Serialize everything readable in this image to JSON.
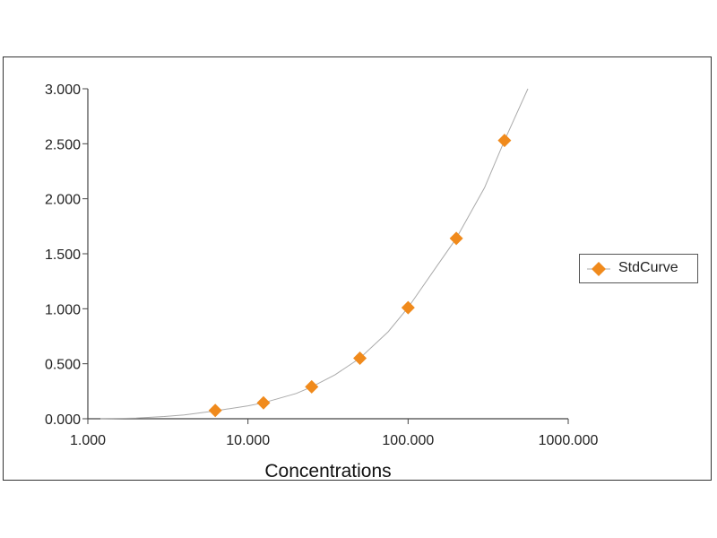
{
  "chart_data": {
    "type": "scatter",
    "title": "",
    "xlabel": "Concentrations",
    "ylabel": "",
    "x_scale": "log",
    "xlim": [
      1,
      1000
    ],
    "ylim": [
      0,
      3
    ],
    "x_ticks": [
      "1.000",
      "10.000",
      "100.000",
      "1000.000"
    ],
    "x_tick_values": [
      1,
      10,
      100,
      1000
    ],
    "y_ticks": [
      "0.000",
      "0.500",
      "1.000",
      "1.500",
      "2.000",
      "2.500",
      "3.000"
    ],
    "y_tick_values": [
      0,
      0.5,
      1,
      1.5,
      2,
      2.5,
      3
    ],
    "grid": false,
    "legend_position": "right",
    "series": [
      {
        "name": "StdCurve",
        "marker": "diamond",
        "color": "#F08A1C",
        "x": [
          6.25,
          12.5,
          25,
          50,
          100,
          200,
          400
        ],
        "y": [
          0.075,
          0.145,
          0.29,
          0.55,
          1.01,
          1.64,
          2.53
        ]
      }
    ],
    "fit_curve": {
      "color": "#AAAAAA",
      "x": [
        1.2,
        2,
        3,
        4,
        6.25,
        10,
        12.5,
        20,
        25,
        35,
        50,
        75,
        100,
        150,
        200,
        300,
        400,
        560
      ],
      "y": [
        0.0,
        0.006,
        0.02,
        0.035,
        0.072,
        0.117,
        0.145,
        0.23,
        0.29,
        0.4,
        0.55,
        0.79,
        1.01,
        1.38,
        1.64,
        2.1,
        2.53,
        3.0
      ]
    }
  }
}
